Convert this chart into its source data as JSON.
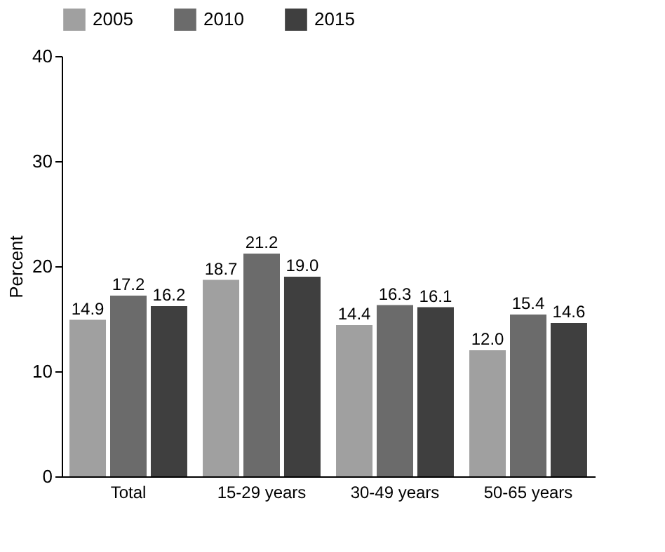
{
  "chart_data": {
    "type": "bar",
    "ylabel": "Percent",
    "categories": [
      "Total",
      "15-29 years",
      "30-49 years",
      "50-65 years"
    ],
    "series": [
      {
        "name": "2005",
        "color": "#a0a0a0",
        "values": [
          14.9,
          18.7,
          14.4,
          12.0
        ],
        "value_labels": [
          "14.9",
          "18.7",
          "14.4",
          "12.0"
        ]
      },
      {
        "name": "2010",
        "color": "#6b6b6b",
        "values": [
          17.2,
          21.2,
          16.3,
          15.4
        ],
        "value_labels": [
          "17.2",
          "21.2",
          "16.3",
          "15.4"
        ]
      },
      {
        "name": "2015",
        "color": "#3f3f3f",
        "values": [
          16.2,
          19.0,
          16.1,
          14.6
        ],
        "value_labels": [
          "16.2",
          "19.0",
          "16.1",
          "14.6"
        ]
      }
    ],
    "ylim": [
      0,
      40
    ],
    "yticks": [
      0,
      10,
      20,
      30,
      40
    ],
    "grid": false,
    "legend": "top"
  }
}
